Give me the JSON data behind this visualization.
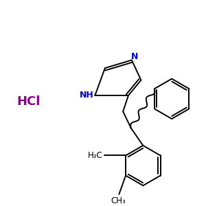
{
  "bg_color": "#ffffff",
  "line_color": "#000000",
  "n_color": "#0000cc",
  "hcl_color": "#8b008b",
  "hcl_text": "HCl",
  "nh_label": "NH",
  "n_label": "N",
  "h3c_label": "H₃C",
  "ch3_label": "CH₃"
}
